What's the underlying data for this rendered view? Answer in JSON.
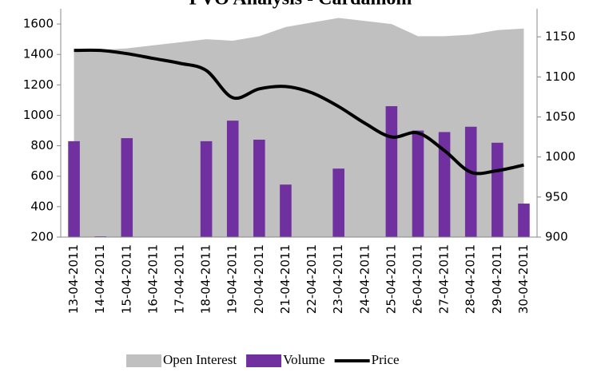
{
  "chart_data": {
    "type": "combo",
    "title": "PVO Analysis - Cardamom",
    "categories": [
      "13-04-2011",
      "14-04-2011",
      "15-04-2011",
      "16-04-2011",
      "17-04-2011",
      "18-04-2011",
      "19-04-2011",
      "20-04-2011",
      "21-04-2011",
      "22-04-2011",
      "23-04-2011",
      "24-04-2011",
      "25-04-2011",
      "26-04-2011",
      "27-04-2011",
      "28-04-2011",
      "29-04-2011",
      "30-04-2011"
    ],
    "series": [
      {
        "name": "Open Interest",
        "kind": "area",
        "color": "#c0c0c0",
        "values": [
          1430,
          1430,
          1440,
          1460,
          1480,
          1500,
          1490,
          1520,
          1580,
          1610,
          1640,
          1620,
          1600,
          1520,
          1520,
          1530,
          1560,
          1570
        ]
      },
      {
        "name": "Volume",
        "kind": "bar",
        "color": "#7030a0",
        "values": [
          830,
          205,
          850,
          null,
          null,
          830,
          965,
          840,
          545,
          null,
          650,
          null,
          1060,
          900,
          890,
          925,
          820,
          420
        ]
      },
      {
        "name": "Price",
        "kind": "line",
        "color": "#000000",
        "axis": "y2",
        "values": [
          1133,
          1133,
          1129,
          1123,
          1117,
          1108,
          1074,
          1085,
          1088,
          1080,
          1063,
          1042,
          1025,
          1030,
          1008,
          981,
          983,
          990
        ]
      }
    ],
    "ylim": [
      200,
      1700
    ],
    "yticks": [
      200,
      400,
      600,
      800,
      1000,
      1200,
      1400,
      1600
    ],
    "y2lim": [
      900,
      1185
    ],
    "y2ticks": [
      900,
      950,
      1000,
      1050,
      1100,
      1150
    ],
    "legend": "bottom"
  }
}
